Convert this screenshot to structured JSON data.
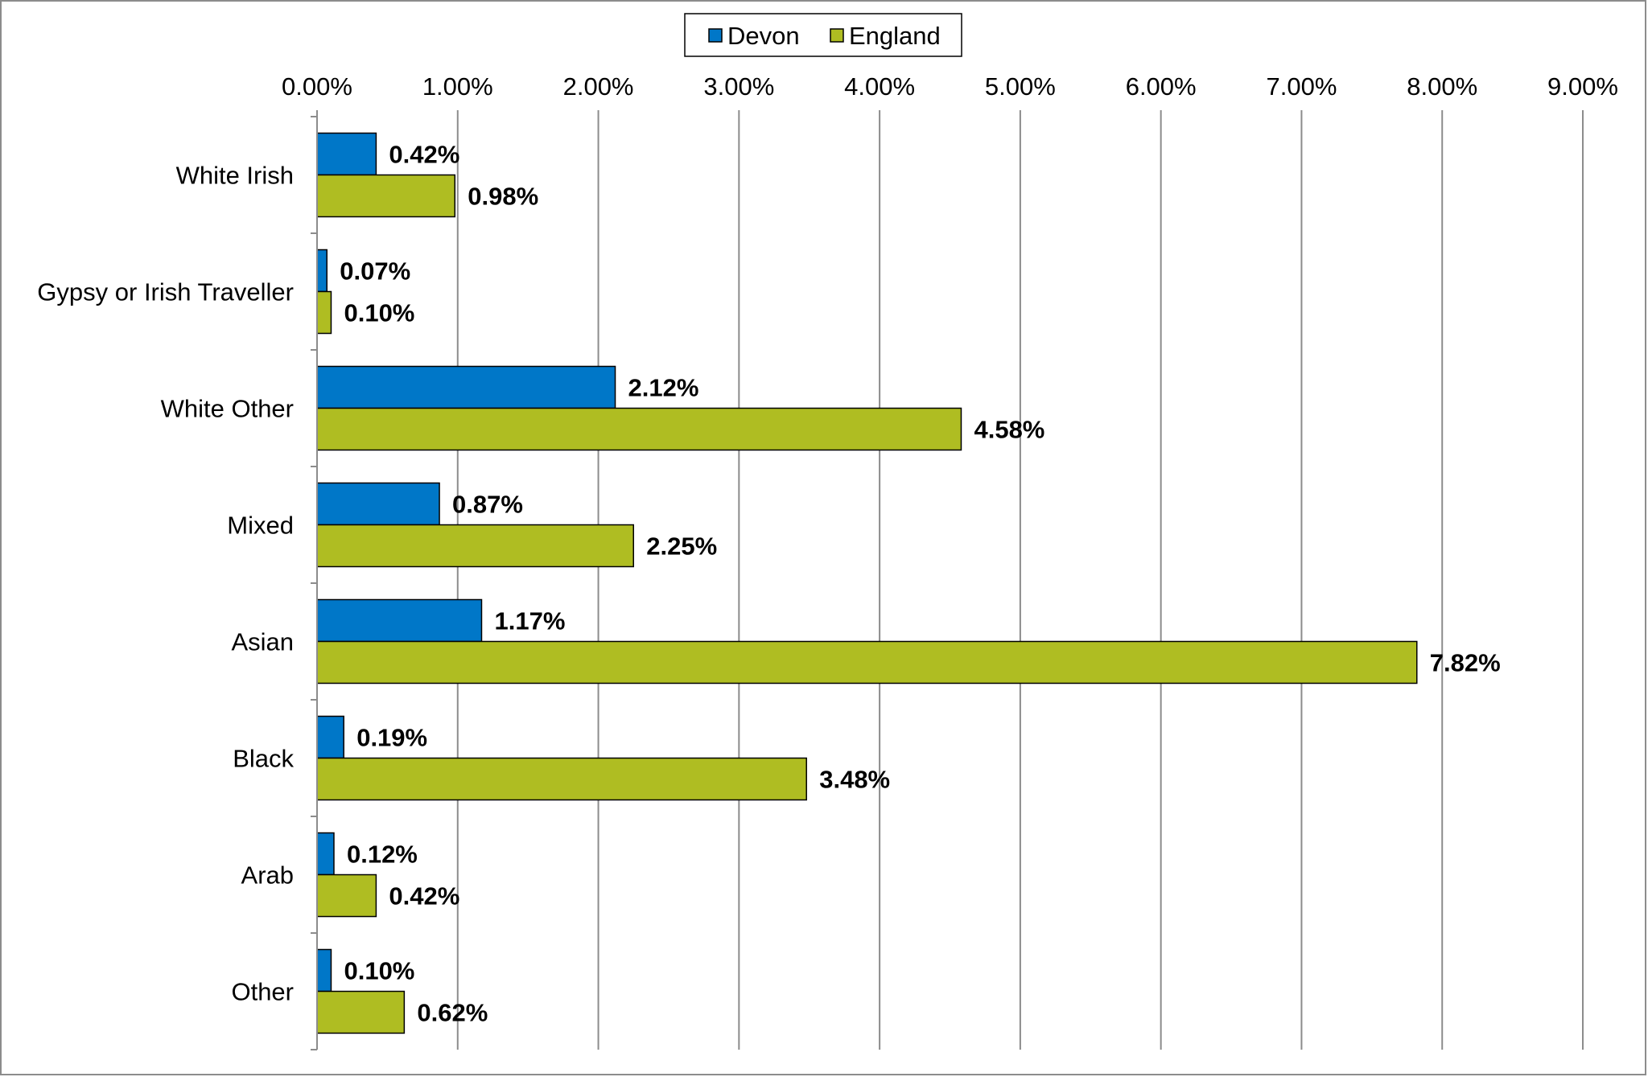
{
  "chart_data": {
    "type": "bar",
    "orientation": "horizontal",
    "categories": [
      "White Irish",
      "Gypsy or Irish Traveller",
      "White Other",
      "Mixed",
      "Asian",
      "Black",
      "Arab",
      "Other"
    ],
    "series": [
      {
        "name": "Devon",
        "color": "#0077c8",
        "values": [
          0.42,
          0.07,
          2.12,
          0.87,
          1.17,
          0.19,
          0.12,
          0.1
        ],
        "labels": [
          "0.42%",
          "0.07%",
          "2.12%",
          "0.87%",
          "1.17%",
          "0.19%",
          "0.12%",
          "0.10%"
        ]
      },
      {
        "name": "England",
        "color": "#afbd22",
        "values": [
          0.98,
          0.1,
          4.58,
          2.25,
          7.82,
          3.48,
          0.42,
          0.62
        ],
        "labels": [
          "0.98%",
          "0.10%",
          "4.58%",
          "2.25%",
          "7.82%",
          "3.48%",
          "0.42%",
          "0.62%"
        ]
      }
    ],
    "x_ticks": [
      0,
      1,
      2,
      3,
      4,
      5,
      6,
      7,
      8,
      9
    ],
    "x_tick_labels": [
      "0.00%",
      "1.00%",
      "2.00%",
      "3.00%",
      "4.00%",
      "5.00%",
      "6.00%",
      "7.00%",
      "8.00%",
      "9.00%"
    ],
    "xlim": [
      0,
      9
    ],
    "x_axis_position": "top",
    "grid": "vertical",
    "legend_position": "top-center",
    "title": "",
    "xlabel": "",
    "ylabel": ""
  }
}
